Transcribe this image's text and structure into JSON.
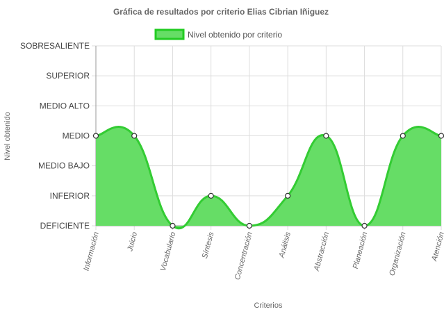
{
  "chart_data": {
    "type": "area",
    "title": "Gráfica de resultados por criterio Elias Cibrian Iñiguez",
    "xlabel": "Criterios",
    "ylabel": "Nivel obtenido",
    "y_levels": [
      "DEFICIENTE",
      "INFERIOR",
      "MEDIO BAJO",
      "MEDIO",
      "MEDIO ALTO",
      "SUPERIOR",
      "SOBRESALIENTE"
    ],
    "ylim": [
      0,
      6
    ],
    "categories": [
      "Información",
      "Juicio",
      "Vocabulario",
      "Síntesis",
      "Concentración",
      "Análisis",
      "Abstracción",
      "Planeación",
      "Organización",
      "Atención"
    ],
    "series": [
      {
        "name": "Nivel obtenido por criterio",
        "values": [
          3,
          3,
          0,
          1,
          0,
          1,
          3,
          0,
          3,
          3
        ]
      }
    ],
    "legend_position": "top",
    "grid": true,
    "colors": {
      "fill": "#66dd66",
      "line": "#33cc33",
      "point_fill": "#ffffff",
      "point_stroke": "#333333",
      "grid": "#dddddd",
      "axis": "#999999"
    }
  }
}
